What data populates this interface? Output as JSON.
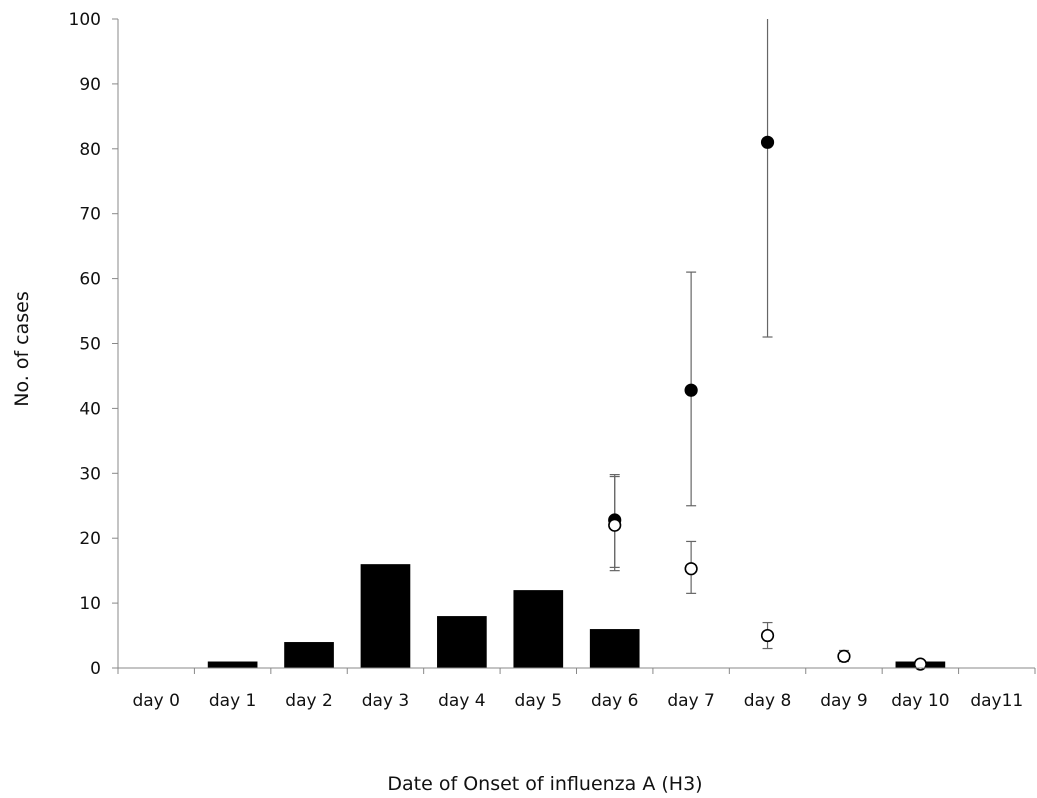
{
  "chart_data": {
    "type": "bar",
    "title": "",
    "xlabel": "Date of Onset of influenza A (H3)",
    "ylabel": "No. of cases",
    "ylim": [
      0,
      100
    ],
    "yticks": [
      0,
      10,
      20,
      30,
      40,
      50,
      60,
      70,
      80,
      90,
      100
    ],
    "grid": false,
    "legend": "none",
    "categories": [
      "day 0",
      "day 1",
      "day 2",
      "day 3",
      "day 4",
      "day 5",
      "day 6",
      "day 7",
      "day 8",
      "day 9",
      "day 10",
      "day11"
    ],
    "series": [
      {
        "kind": "bar",
        "color": "#000000",
        "values": [
          0,
          1,
          4,
          16,
          8,
          12,
          6,
          0,
          0,
          0,
          1,
          0
        ]
      },
      {
        "kind": "scatter",
        "marker": "filled-circle",
        "color": "#000000",
        "points": [
          {
            "x": "day 6",
            "y": 22.8,
            "err_low": 15.5,
            "err_high": 29.5
          },
          {
            "x": "day 7",
            "y": 42.8,
            "err_low": 25,
            "err_high": 61
          },
          {
            "x": "day 8",
            "y": 81,
            "err_low": 51,
            "err_high": 100
          }
        ]
      },
      {
        "kind": "scatter",
        "marker": "open-circle",
        "color": "#000000",
        "points": [
          {
            "x": "day 6",
            "y": 22,
            "err_low": 15,
            "err_high": 29.8
          },
          {
            "x": "day 7",
            "y": 15.3,
            "err_low": 11.5,
            "err_high": 19.5
          },
          {
            "x": "day 8",
            "y": 5,
            "err_low": 3,
            "err_high": 7
          },
          {
            "x": "day 9",
            "y": 1.8,
            "err_low": 1,
            "err_high": 2.7
          },
          {
            "x": "day 10",
            "y": 0.6,
            "err_low": 0.3,
            "err_high": 1
          }
        ]
      }
    ]
  }
}
